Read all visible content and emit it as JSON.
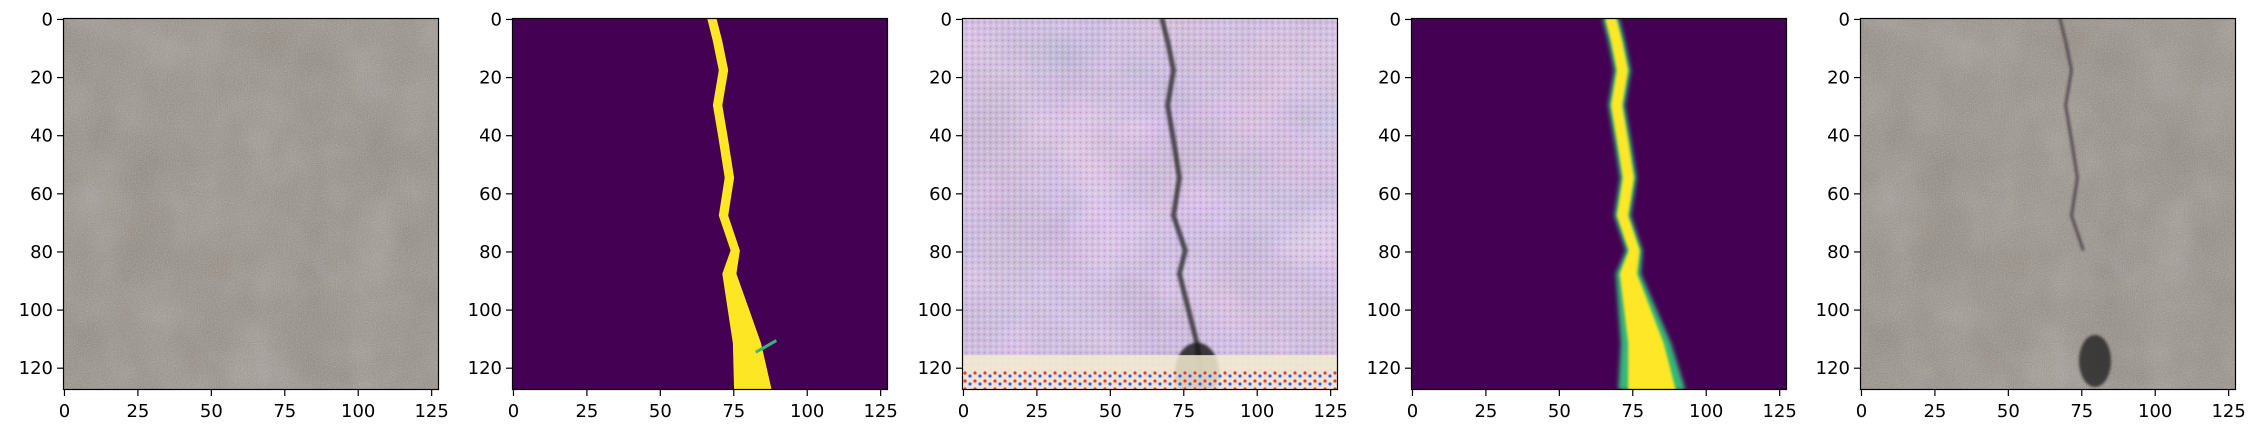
{
  "figure": {
    "panels": [
      {
        "id": "concrete-texture",
        "content": "texture",
        "x_ticks": [
          "0",
          "25",
          "50",
          "75",
          "100",
          "125"
        ],
        "y_ticks": [
          "0",
          "20",
          "40",
          "60",
          "80",
          "100",
          "120"
        ]
      },
      {
        "id": "crack-mask",
        "content": "mask",
        "x_ticks": [
          "0",
          "25",
          "50",
          "75",
          "100",
          "125"
        ],
        "y_ticks": [
          "0",
          "20",
          "40",
          "60",
          "80",
          "100",
          "120"
        ]
      },
      {
        "id": "generated-crack",
        "content": "generated",
        "x_ticks": [
          "0",
          "25",
          "50",
          "75",
          "100",
          "125"
        ],
        "y_ticks": [
          "0",
          "20",
          "40",
          "60",
          "80",
          "100",
          "120"
        ]
      },
      {
        "id": "predicted-mask",
        "content": "softmask",
        "x_ticks": [
          "0",
          "25",
          "50",
          "75",
          "100",
          "125"
        ],
        "y_ticks": [
          "0",
          "20",
          "40",
          "60",
          "80",
          "100",
          "120"
        ]
      },
      {
        "id": "composited-crack",
        "content": "composite",
        "x_ticks": [
          "0",
          "25",
          "50",
          "75",
          "100",
          "125"
        ],
        "y_ticks": [
          "0",
          "20",
          "40",
          "60",
          "80",
          "100",
          "120"
        ]
      }
    ],
    "axis_range": [
      0,
      128
    ],
    "tick_values_x": [
      0,
      25,
      50,
      75,
      100,
      125
    ],
    "tick_values_y": [
      0,
      20,
      40,
      60,
      80,
      100,
      120
    ],
    "colors": {
      "mask_background": "#440154",
      "mask_foreground": "#fde725",
      "mask_edge": "#35b779",
      "concrete": "#8f867c"
    },
    "crack_path": [
      [
        68,
        0
      ],
      [
        70,
        8
      ],
      [
        72,
        18
      ],
      [
        70,
        30
      ],
      [
        72,
        42
      ],
      [
        74,
        55
      ],
      [
        72,
        68
      ],
      [
        76,
        80
      ],
      [
        74,
        88
      ],
      [
        77,
        100
      ],
      [
        80,
        112
      ],
      [
        82,
        128
      ]
    ]
  }
}
